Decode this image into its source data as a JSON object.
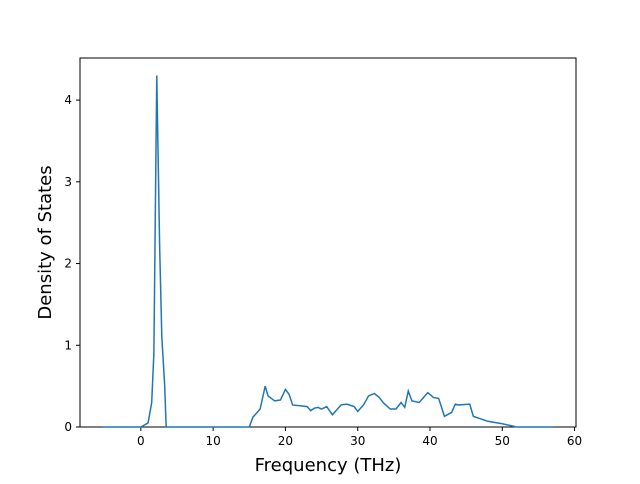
{
  "chart_data": {
    "type": "line",
    "xlabel": "Frequency (THz)",
    "ylabel": "Density of States",
    "x": [
      -5.3,
      0,
      1,
      1.5,
      1.8,
      2.2,
      2.6,
      2.9,
      3.3,
      3.5,
      15,
      15.5,
      16.5,
      17.2,
      17.6,
      18.5,
      19.3,
      20,
      20.5,
      21,
      22,
      23,
      23.5,
      24,
      24.5,
      25,
      25.7,
      26.5,
      27,
      27.7,
      28.5,
      29.5,
      30,
      30.8,
      31.5,
      32.3,
      33,
      33.5,
      34.5,
      35.3,
      36,
      36.5,
      37,
      37.5,
      38.5,
      39,
      39.7,
      40.5,
      41.2,
      42,
      43,
      43.5,
      44,
      45.5,
      46,
      47,
      48,
      50,
      52,
      57
    ],
    "series": [
      {
        "color": "#1f77b4",
        "values": [
          0,
          0,
          0.05,
          0.3,
          0.9,
          4.3,
          2.2,
          1.1,
          0.5,
          0,
          0,
          0.12,
          0.22,
          0.5,
          0.38,
          0.32,
          0.33,
          0.46,
          0.4,
          0.27,
          0.26,
          0.25,
          0.2,
          0.23,
          0.24,
          0.22,
          0.25,
          0.15,
          0.2,
          0.27,
          0.28,
          0.25,
          0.19,
          0.27,
          0.38,
          0.41,
          0.36,
          0.3,
          0.22,
          0.22,
          0.3,
          0.24,
          0.44,
          0.32,
          0.3,
          0.35,
          0.42,
          0.36,
          0.35,
          0.13,
          0.18,
          0.28,
          0.27,
          0.28,
          0.13,
          0.1,
          0.07,
          0.04,
          0,
          0
        ]
      }
    ],
    "xlim": [
      -8.42,
      60.2
    ],
    "xticks": [
      0,
      10,
      20,
      30,
      40,
      50,
      60
    ],
    "ylim": [
      0,
      4.515
    ],
    "yticks": [
      0,
      1,
      2,
      3,
      4
    ]
  }
}
